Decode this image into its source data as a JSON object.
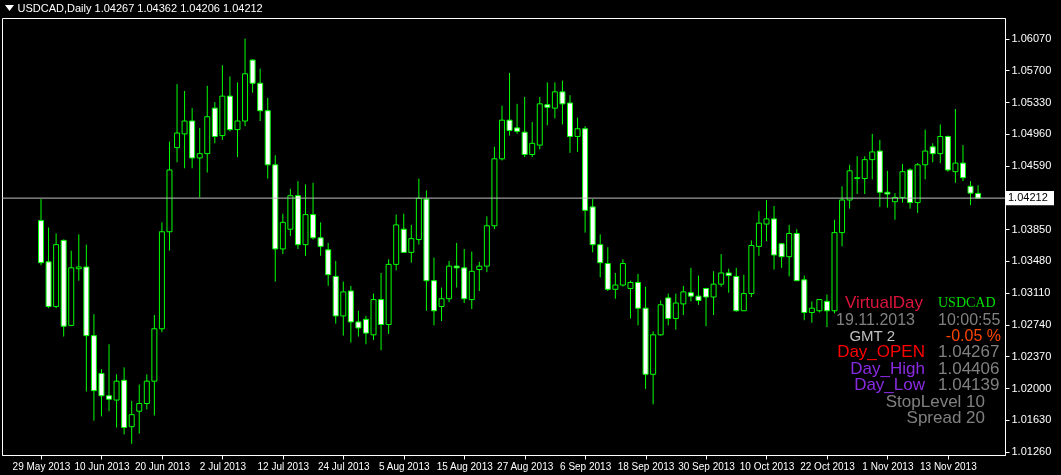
{
  "chart_data": {
    "type": "candlestick",
    "title": "USDCAD,Daily  1.04267 1.04362 1.04206 1.04212",
    "color": "#00ff00",
    "categories": [
      "29 May 2013",
      null,
      null,
      null,
      null,
      null,
      null,
      null,
      "10 Jun 2013",
      null,
      null,
      null,
      null,
      null,
      null,
      null,
      "20 Jun 2013",
      null,
      null,
      null,
      null,
      null,
      null,
      null,
      "2 Jul 2013",
      null,
      null,
      null,
      null,
      null,
      null,
      null,
      "12 Jul 2013",
      null,
      null,
      null,
      null,
      null,
      null,
      null,
      "24 Jul 2013",
      null,
      null,
      null,
      null,
      null,
      null,
      null,
      "5 Aug 2013",
      null,
      null,
      null,
      null,
      null,
      null,
      null,
      "15 Aug 2013",
      null,
      null,
      null,
      null,
      null,
      null,
      null,
      "27 Aug 2013",
      null,
      null,
      null,
      null,
      null,
      null,
      null,
      "6 Sep 2013",
      null,
      null,
      null,
      null,
      null,
      null,
      null,
      "18 Sep 2013",
      null,
      null,
      null,
      null,
      null,
      null,
      null,
      "30 Sep 2013",
      null,
      null,
      null,
      null,
      null,
      null,
      null,
      "10 Oct 2013",
      null,
      null,
      null,
      null,
      null,
      null,
      null,
      "22 Oct 2013",
      null,
      null,
      null,
      null,
      null,
      null,
      null,
      "1 Nov 2013",
      null,
      null,
      null,
      null,
      null,
      null,
      null,
      "13 Nov 2013",
      null,
      null,
      null,
      null
    ],
    "ohlc": [
      [
        1.0395,
        1.042,
        1.0343,
        1.0346
      ],
      [
        1.0347,
        1.0387,
        1.0293,
        1.0295
      ],
      [
        1.0295,
        1.038,
        1.0293,
        1.0367
      ],
      [
        1.0372,
        1.0373,
        1.026,
        1.0272
      ],
      [
        1.0273,
        1.036,
        1.0272,
        1.034
      ],
      [
        1.0339,
        1.0379,
        1.0325,
        1.0341
      ],
      [
        1.0341,
        1.0367,
        1.0196,
        1.0261
      ],
      [
        1.0261,
        1.0286,
        1.0162,
        1.0197
      ],
      [
        1.0217,
        1.0222,
        1.0167,
        1.0191
      ],
      [
        1.0191,
        1.0251,
        1.0173,
        1.0187
      ],
      [
        1.0186,
        1.0216,
        1.0154,
        1.0208
      ],
      [
        1.0209,
        1.0224,
        1.0146,
        1.0154
      ],
      [
        1.0155,
        1.0185,
        1.0135,
        1.0169
      ],
      [
        1.0173,
        1.0204,
        1.0147,
        1.0182
      ],
      [
        1.0182,
        1.0216,
        1.0175,
        1.0208
      ],
      [
        1.0208,
        1.0285,
        1.0168,
        1.0269
      ],
      [
        1.0269,
        1.0393,
        1.0265,
        1.0382
      ],
      [
        1.0382,
        1.0487,
        1.036,
        1.0454
      ],
      [
        1.048,
        1.0554,
        1.0463,
        1.0497
      ],
      [
        1.0496,
        1.0546,
        1.0456,
        1.0511
      ],
      [
        1.0511,
        1.0526,
        1.0456,
        1.0468
      ],
      [
        1.0468,
        1.0503,
        1.0422,
        1.0473
      ],
      [
        1.0473,
        1.0552,
        1.0451,
        1.0516
      ],
      [
        1.0526,
        1.0533,
        1.0485,
        1.0493
      ],
      [
        1.0494,
        1.0576,
        1.0489,
        1.054
      ],
      [
        1.054,
        1.0563,
        1.0499,
        1.0501
      ],
      [
        1.0501,
        1.0556,
        1.0469,
        1.0511
      ],
      [
        1.0511,
        1.0607,
        1.0505,
        1.0566
      ],
      [
        1.0582,
        1.0583,
        1.0544,
        1.0555
      ],
      [
        1.0555,
        1.0572,
        1.0511,
        1.0523
      ],
      [
        1.0523,
        1.0538,
        1.0444,
        1.046
      ],
      [
        1.046,
        1.0471,
        1.0324,
        1.0362
      ],
      [
        1.0362,
        1.0403,
        1.0356,
        1.0393
      ],
      [
        1.0385,
        1.0432,
        1.0377,
        1.0424
      ],
      [
        1.0424,
        1.0441,
        1.0362,
        1.0367
      ],
      [
        1.0367,
        1.0437,
        1.0354,
        1.0402
      ],
      [
        1.0402,
        1.0439,
        1.0373,
        1.0375
      ],
      [
        1.0375,
        1.0393,
        1.0354,
        1.0365
      ],
      [
        1.0361,
        1.0369,
        1.0319,
        1.0332
      ],
      [
        1.033,
        1.0348,
        1.0275,
        1.0284
      ],
      [
        1.0284,
        1.0324,
        1.0261,
        1.0312
      ],
      [
        1.0313,
        1.0319,
        1.0253,
        1.0277
      ],
      [
        1.0277,
        1.029,
        1.026,
        1.027
      ],
      [
        1.028,
        1.0284,
        1.0251,
        1.0264
      ],
      [
        1.0262,
        1.031,
        1.0256,
        1.0303
      ],
      [
        1.0303,
        1.0334,
        1.0244,
        1.0274
      ],
      [
        1.0274,
        1.035,
        1.0263,
        1.0344
      ],
      [
        1.0344,
        1.0402,
        1.0337,
        1.039
      ],
      [
        1.0385,
        1.0403,
        1.0358,
        1.0358
      ],
      [
        1.0358,
        1.039,
        1.0346,
        1.0374
      ],
      [
        1.0373,
        1.0444,
        1.0367,
        1.0421
      ],
      [
        1.042,
        1.043,
        1.029,
        1.0325
      ],
      [
        1.0325,
        1.0352,
        1.0273,
        1.029
      ],
      [
        1.0295,
        1.0317,
        1.0278,
        1.0304
      ],
      [
        1.0304,
        1.0348,
        1.03,
        1.0342
      ],
      [
        1.0342,
        1.0369,
        1.0317,
        1.034
      ],
      [
        1.034,
        1.0362,
        1.0299,
        1.0304
      ],
      [
        1.0303,
        1.0359,
        1.0292,
        1.0336
      ],
      [
        1.0338,
        1.0347,
        1.0313,
        1.0342
      ],
      [
        1.0342,
        1.04,
        1.0335,
        1.0389
      ],
      [
        1.0389,
        1.0481,
        1.0385,
        1.0467
      ],
      [
        1.0467,
        1.0529,
        1.0465,
        1.0512
      ],
      [
        1.0512,
        1.0567,
        1.0494,
        1.05
      ],
      [
        1.0503,
        1.0531,
        1.0496,
        1.0499
      ],
      [
        1.0498,
        1.0539,
        1.0469,
        1.0472
      ],
      [
        1.0472,
        1.051,
        1.0469,
        1.0485
      ],
      [
        1.0483,
        1.0539,
        1.0478,
        1.0531
      ],
      [
        1.053,
        1.0556,
        1.0506,
        1.0527
      ],
      [
        1.0526,
        1.0556,
        1.0514,
        1.0545
      ],
      [
        1.0545,
        1.0558,
        1.0507,
        1.0531
      ],
      [
        1.0532,
        1.0541,
        1.0474,
        1.0493
      ],
      [
        1.0493,
        1.0515,
        1.0475,
        1.0502
      ],
      [
        1.0502,
        1.0505,
        1.0381,
        1.0407
      ],
      [
        1.0411,
        1.042,
        1.0358,
        1.0367
      ],
      [
        1.0367,
        1.0379,
        1.0329,
        1.0346
      ],
      [
        1.0345,
        1.0364,
        1.0313,
        1.0315
      ],
      [
        1.0315,
        1.0334,
        1.0304,
        1.032
      ],
      [
        1.032,
        1.035,
        1.0318,
        1.0345
      ],
      [
        1.0316,
        1.0325,
        1.0281,
        1.0323
      ],
      [
        1.0323,
        1.0333,
        1.0273,
        1.0293
      ],
      [
        1.0293,
        1.0318,
        1.0199,
        1.0216
      ],
      [
        1.0216,
        1.0266,
        1.0181,
        1.0262
      ],
      [
        1.0262,
        1.0302,
        1.0261,
        1.0297
      ],
      [
        1.0305,
        1.031,
        1.0273,
        1.0281
      ],
      [
        1.0281,
        1.031,
        1.0268,
        1.0299
      ],
      [
        1.0298,
        1.0319,
        1.0285,
        1.0312
      ],
      [
        1.0311,
        1.034,
        1.0301,
        1.0307
      ],
      [
        1.0307,
        1.0331,
        1.0297,
        1.0302
      ],
      [
        1.0316,
        1.0316,
        1.0272,
        1.0306
      ],
      [
        1.0306,
        1.0336,
        1.0285,
        1.0321
      ],
      [
        1.0321,
        1.0356,
        1.0318,
        1.0334
      ],
      [
        1.0334,
        1.0339,
        1.0311,
        1.0331
      ],
      [
        1.033,
        1.034,
        1.0289,
        1.029
      ],
      [
        1.029,
        1.0332,
        1.029,
        1.031
      ],
      [
        1.031,
        1.0372,
        1.0306,
        1.0366
      ],
      [
        1.0365,
        1.0406,
        1.0354,
        1.0392
      ],
      [
        1.0391,
        1.0419,
        1.0371,
        1.0397
      ],
      [
        1.0397,
        1.0412,
        1.0338,
        1.0355
      ],
      [
        1.0368,
        1.0369,
        1.034,
        1.0353
      ],
      [
        1.0353,
        1.039,
        1.033,
        1.038
      ],
      [
        1.038,
        1.0385,
        1.0325,
        1.0325
      ],
      [
        1.0326,
        1.0331,
        1.0279,
        1.0288
      ],
      [
        1.0288,
        1.0301,
        1.0276,
        1.0293
      ],
      [
        1.029,
        1.0303,
        1.0288,
        1.0303
      ],
      [
        1.0301,
        1.0309,
        1.0271,
        1.029
      ],
      [
        1.029,
        1.0396,
        1.0287,
        1.0381
      ],
      [
        1.0381,
        1.0435,
        1.0365,
        1.0419
      ],
      [
        1.0419,
        1.046,
        1.0409,
        1.0453
      ],
      [
        1.0444,
        1.047,
        1.0426,
        1.0445
      ],
      [
        1.0444,
        1.047,
        1.0426,
        1.0466
      ],
      [
        1.0466,
        1.0496,
        1.0443,
        1.0475
      ],
      [
        1.0476,
        1.0489,
        1.0411,
        1.0428
      ],
      [
        1.0428,
        1.0453,
        1.041,
        1.0426
      ],
      [
        1.0417,
        1.0427,
        1.0396,
        1.0422
      ],
      [
        1.0422,
        1.0461,
        1.0416,
        1.0452
      ],
      [
        1.0454,
        1.0456,
        1.0409,
        1.0416
      ],
      [
        1.0416,
        1.0462,
        1.0404,
        1.046
      ],
      [
        1.046,
        1.0501,
        1.0443,
        1.0476
      ],
      [
        1.0481,
        1.0485,
        1.0463,
        1.0473
      ],
      [
        1.0473,
        1.0507,
        1.0462,
        1.0493
      ],
      [
        1.0493,
        1.0494,
        1.0452,
        1.0454
      ],
      [
        1.0452,
        1.0525,
        1.0439,
        1.0462
      ],
      [
        1.0462,
        1.0483,
        1.0441,
        1.0445
      ],
      [
        1.0435,
        1.0441,
        1.0413,
        1.0427
      ],
      [
        1.04267,
        1.04362,
        1.04206,
        1.04212
      ]
    ],
    "ylim": [
      1.0122,
      1.0631
    ],
    "yticks": [
      {
        "value": 1.0607,
        "label": "1.06070"
      },
      {
        "value": 1.057,
        "label": "1.05700"
      },
      {
        "value": 1.0533,
        "label": "1.05330"
      },
      {
        "value": 1.0496,
        "label": "1.04960"
      },
      {
        "value": 1.0459,
        "label": "1.04590"
      },
      {
        "value": 1.0385,
        "label": "1.03850"
      },
      {
        "value": 1.0348,
        "label": "1.03480"
      },
      {
        "value": 1.0311,
        "label": "1.03110"
      },
      {
        "value": 1.0274,
        "label": "1.02740"
      },
      {
        "value": 1.0237,
        "label": "1.02370"
      },
      {
        "value": 1.02,
        "label": "1.02000"
      },
      {
        "value": 1.0163,
        "label": "1.01630"
      },
      {
        "value": 1.0126,
        "label": "1.01260"
      }
    ],
    "ref_lines": [
      {
        "axis": "y",
        "value": 1.04212,
        "label": "1.04212",
        "color": "#c0c0c0"
      }
    ],
    "annotations": [
      "VirtualDay",
      "USDCAD",
      "19.11.2013",
      "10:00:55",
      "GMT 2",
      "-0.05 %",
      "Day_OPEN",
      "1.04267",
      "Day_High",
      "1.04406",
      "Day_Low",
      "1.04139",
      "StopLevel 10",
      "Spread  20"
    ]
  }
}
